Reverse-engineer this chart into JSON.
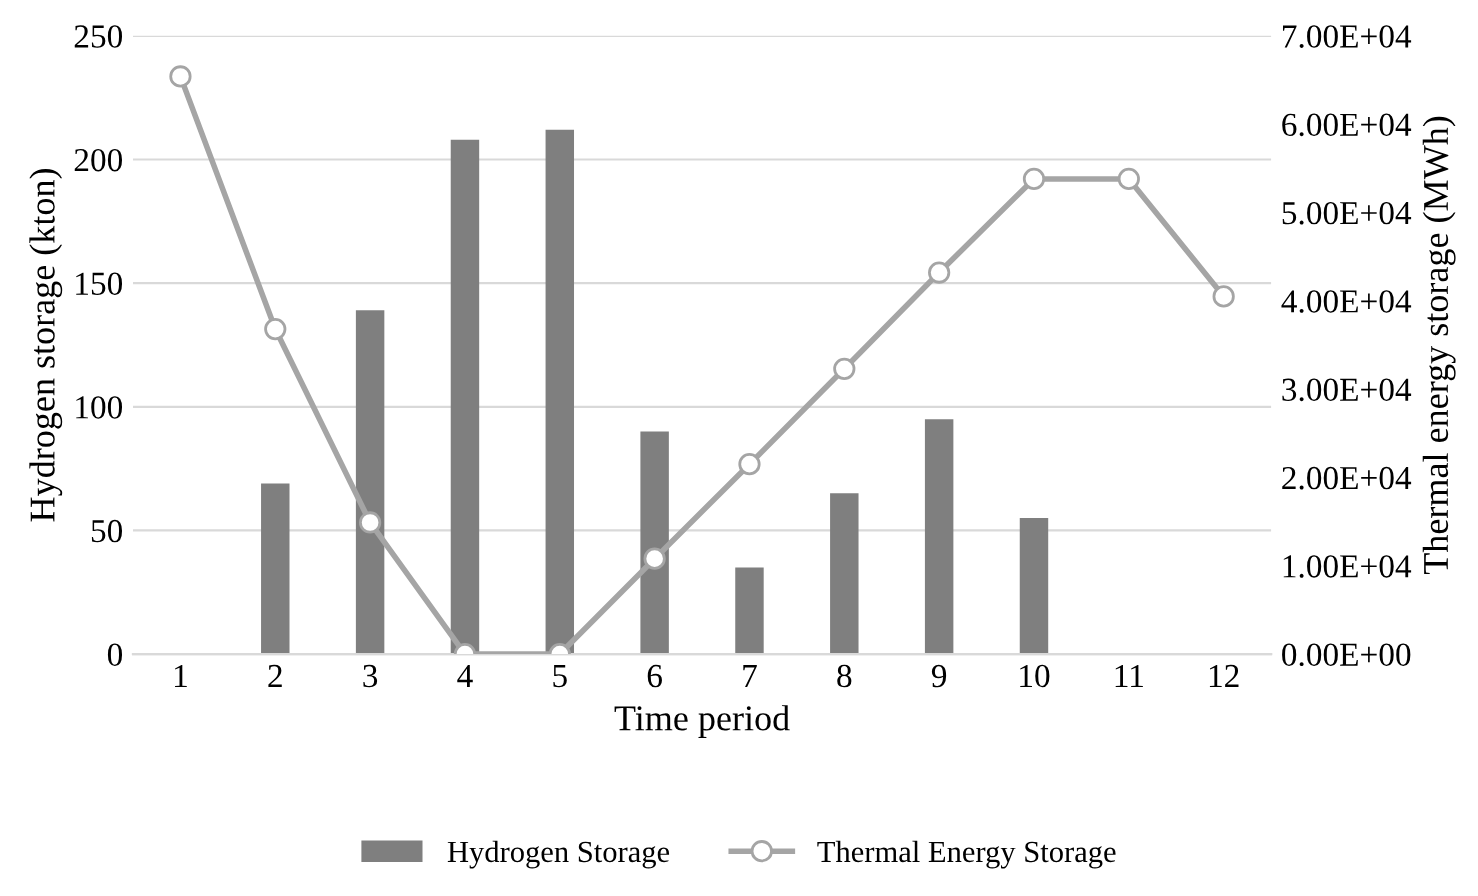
{
  "chart_data": {
    "type": "bar",
    "xlabel": "Time period",
    "ylabel": "Hydrogen storage (kton)",
    "y2label": "Thermal energy storage (MWh)",
    "categories": [
      "1",
      "2",
      "3",
      "4",
      "5",
      "6",
      "7",
      "8",
      "9",
      "10",
      "11",
      "12"
    ],
    "series": [
      {
        "name": "Hydrogen Storage",
        "color": "#7f7f7f",
        "values": [
          null,
          69,
          139,
          208,
          212,
          90,
          35,
          65,
          95,
          55,
          null,
          null
        ]
      },
      {
        "name": "Thermal Energy Storage",
        "type": "line",
        "axis": "y2",
        "color": "#a5a5a5",
        "marker": "circle",
        "values": [
          65400,
          36800,
          14900,
          0,
          0,
          10800,
          21500,
          32300,
          43200,
          53800,
          53800,
          40500
        ]
      }
    ],
    "ylim": [
      0,
      250
    ],
    "yticks": [
      0,
      50,
      100,
      150,
      200,
      250
    ],
    "y2lim": [
      0,
      70000
    ],
    "y2ticks": [
      {
        "value": 0,
        "label": "0.00E+00"
      },
      {
        "value": 10000,
        "label": "1.00E+04"
      },
      {
        "value": 20000,
        "label": "2.00E+04"
      },
      {
        "value": 30000,
        "label": "3.00E+04"
      },
      {
        "value": 40000,
        "label": "4.00E+04"
      },
      {
        "value": 50000,
        "label": "5.00E+04"
      },
      {
        "value": 60000,
        "label": "6.00E+04"
      },
      {
        "value": 70000,
        "label": "7.00E+04"
      }
    ],
    "grid": "y",
    "legend": "bottom"
  }
}
